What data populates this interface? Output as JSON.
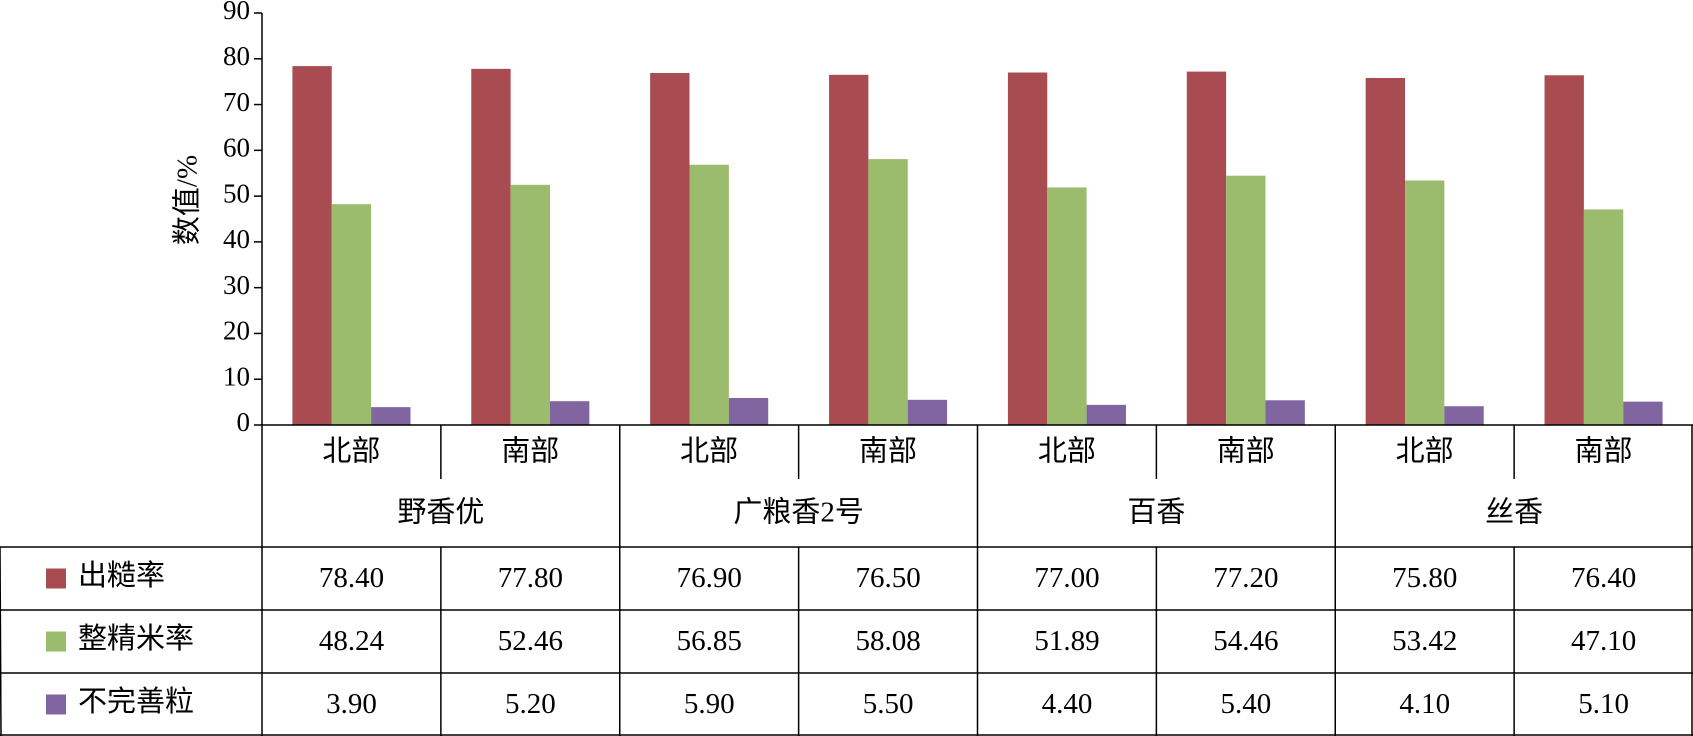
{
  "chart_data": {
    "type": "bar",
    "ylabel": "数值/%",
    "categories": [
      "北部",
      "南部",
      "北部",
      "南部",
      "北部",
      "南部",
      "北部",
      "南部"
    ],
    "groups": [
      "野香优",
      "广粮香2号",
      "百香",
      "丝香"
    ],
    "series": [
      {
        "name": "出糙率",
        "color": "#a84c51",
        "values": [
          78.4,
          77.8,
          76.9,
          76.5,
          77.0,
          77.2,
          75.8,
          76.4
        ],
        "value_labels": [
          "78.40",
          "77.80",
          "76.90",
          "76.50",
          "77.00",
          "77.20",
          "75.80",
          "76.40"
        ]
      },
      {
        "name": "整精米率",
        "color": "#9bbb6d",
        "values": [
          48.24,
          52.46,
          56.85,
          58.08,
          51.89,
          54.46,
          53.42,
          47.1
        ],
        "value_labels": [
          "48.24",
          "52.46",
          "56.85",
          "58.08",
          "51.89",
          "54.46",
          "53.42",
          "47.10"
        ]
      },
      {
        "name": "不完善粒",
        "color": "#8065a0",
        "values": [
          3.9,
          5.2,
          5.9,
          5.5,
          4.4,
          5.4,
          4.1,
          5.1
        ],
        "value_labels": [
          "3.90",
          "5.20",
          "5.90",
          "5.50",
          "4.40",
          "5.40",
          "4.10",
          "5.10"
        ]
      }
    ],
    "ylim": [
      0,
      90
    ],
    "yticks": [
      0,
      10,
      20,
      30,
      40,
      50,
      60,
      70,
      80,
      90
    ]
  }
}
